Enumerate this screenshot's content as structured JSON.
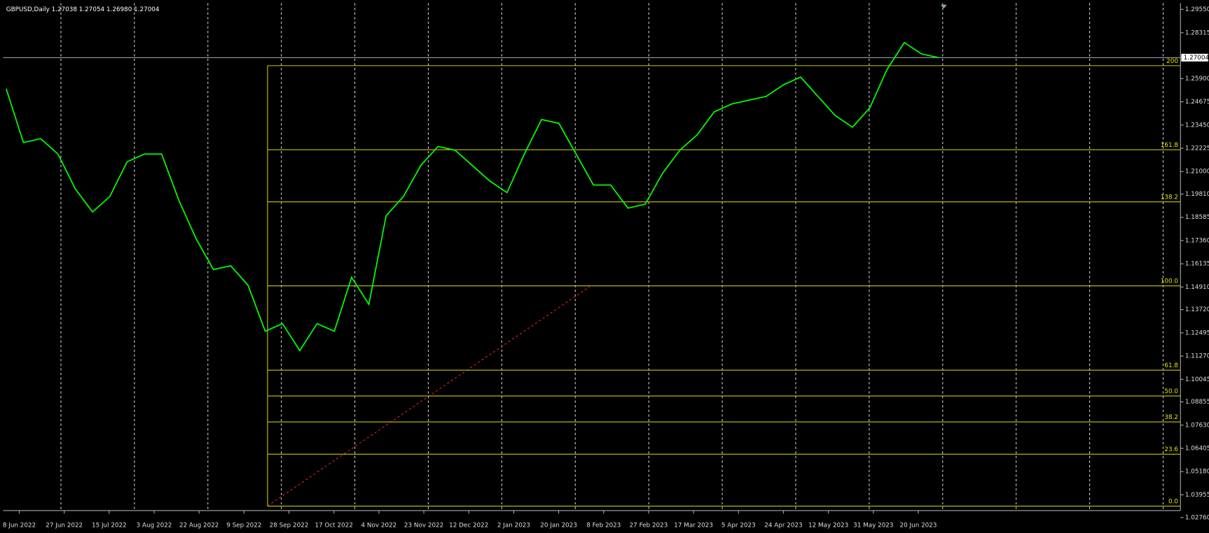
{
  "header": "GBPUSD,Daily  1.27038 1.27054 1.26980 1.27004",
  "current_price": "1.27004",
  "price_axis": [
    "1.29550",
    "1.28315",
    "1.25900",
    "1.24675",
    "1.23450",
    "1.22225",
    "1.21000",
    "1.19810",
    "1.18585",
    "1.17360",
    "1.16135",
    "1.14910",
    "1.13720",
    "1.12495",
    "1.11270",
    "1.10045",
    "1.08855",
    "1.07630",
    "1.06405",
    "1.05180",
    "1.03955",
    "1.02760"
  ],
  "time_axis": [
    "8 Jun 2022",
    "27 Jun 2022",
    "15 Jul 2022",
    "3 Aug 2022",
    "22 Aug 2022",
    "9 Sep 2022",
    "28 Sep 2022",
    "17 Oct 2022",
    "4 Nov 2022",
    "23 Nov 2022",
    "12 Dec 2022",
    "2 Jan 2023",
    "20 Jan 2023",
    "8 Feb 2023",
    "27 Feb 2023",
    "17 Mar 2023",
    "5 Apr 2023",
    "24 Apr 2023",
    "12 May 2023",
    "31 May 2023",
    "20 Jun 2023"
  ],
  "fib_levels": [
    {
      "label": "0.0",
      "price": 1.0336
    },
    {
      "label": "23.6",
      "price": 1.061
    },
    {
      "label": "38.2",
      "price": 1.078
    },
    {
      "label": "50.0",
      "price": 1.0917
    },
    {
      "label": "61.8",
      "price": 1.1053
    },
    {
      "label": "100.0",
      "price": 1.1497
    },
    {
      "label": "138.2",
      "price": 1.194
    },
    {
      "label": "161.8",
      "price": 1.2215
    },
    {
      "label": "200",
      "price": 1.2658
    }
  ],
  "closes": [
    1.2537,
    1.2253,
    1.2273,
    1.2192,
    1.2009,
    1.1887,
    1.1968,
    1.2151,
    1.2192,
    1.2192,
    1.1948,
    1.1745,
    1.1583,
    1.1603,
    1.1501,
    1.1258,
    1.1298,
    1.1156,
    1.1298,
    1.1258,
    1.1542,
    1.14,
    1.1867,
    1.1968,
    1.2131,
    1.2232,
    1.2212,
    1.2131,
    1.205,
    1.1989,
    1.2192,
    1.2374,
    1.2354,
    1.2192,
    1.2029,
    1.2029,
    1.1907,
    1.1928,
    1.209,
    1.2212,
    1.2293,
    1.2415,
    1.2456,
    1.2476,
    1.2496,
    1.2557,
    1.2598,
    1.2496,
    1.2395,
    1.2334,
    1.2435,
    1.2638,
    1.278,
    1.272,
    1.27
  ]
}
